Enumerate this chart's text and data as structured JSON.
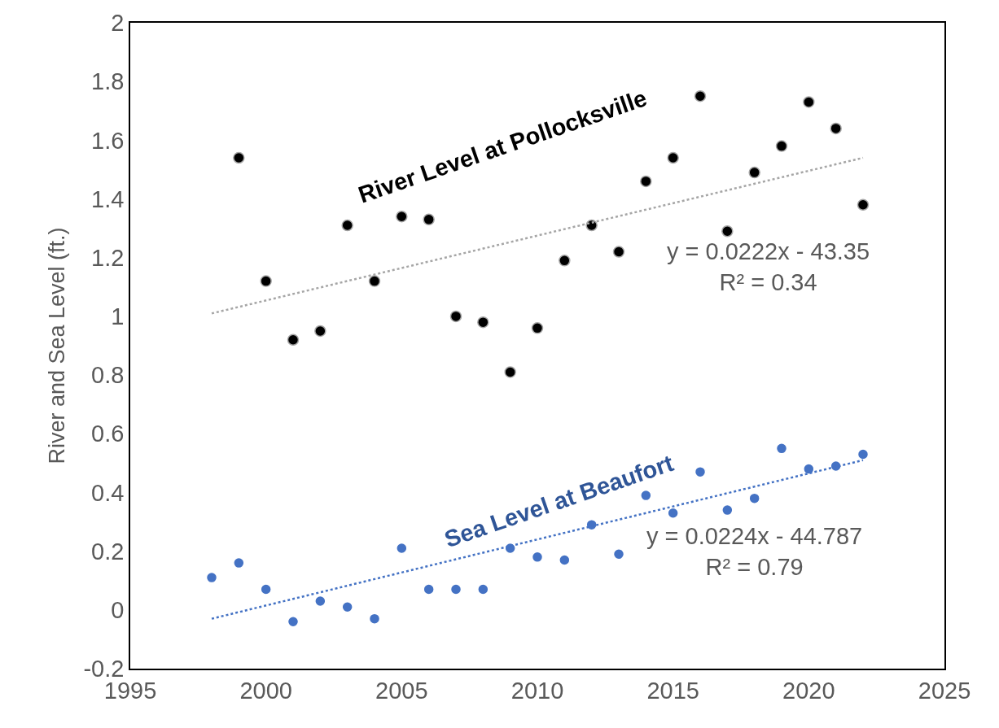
{
  "chart_data": {
    "type": "scatter",
    "ylabel": "River and Sea Level (ft.)",
    "xlim": [
      1995,
      2025
    ],
    "xticks": [
      1995,
      2000,
      2005,
      2010,
      2015,
      2020,
      2025
    ],
    "ylim": [
      -0.2,
      2
    ],
    "yticks": [
      -0.2,
      0,
      0.2,
      0.4,
      0.6,
      0.8,
      1,
      1.2,
      1.4,
      1.6,
      1.8,
      2
    ],
    "marker": "circle",
    "series": [
      {
        "name": "River Level at Pollocksville",
        "color": "#000000",
        "x": [
          1999,
          2000,
          2001,
          2002,
          2003,
          2004,
          2005,
          2006,
          2007,
          2008,
          2009,
          2010,
          2011,
          2012,
          2013,
          2014,
          2015,
          2016,
          2017,
          2018,
          2019,
          2020,
          2021,
          2022
        ],
        "values": [
          1.54,
          1.12,
          0.92,
          0.95,
          1.31,
          1.12,
          1.34,
          1.33,
          1.0,
          0.98,
          0.81,
          0.96,
          1.19,
          1.31,
          1.22,
          1.46,
          1.54,
          1.75,
          1.29,
          1.49,
          1.58,
          1.73,
          1.64,
          1.38
        ]
      },
      {
        "name": "Sea Level at Beaufort",
        "color": "#4472c4",
        "x": [
          1998,
          1999,
          2000,
          2001,
          2002,
          2003,
          2004,
          2005,
          2006,
          2007,
          2008,
          2009,
          2010,
          2011,
          2012,
          2013,
          2014,
          2015,
          2016,
          2017,
          2018,
          2019,
          2020,
          2021,
          2022
        ],
        "values": [
          0.11,
          0.16,
          0.07,
          -0.04,
          0.03,
          0.01,
          -0.03,
          0.21,
          0.07,
          0.07,
          0.07,
          0.21,
          0.18,
          0.17,
          0.29,
          0.19,
          0.39,
          0.33,
          0.47,
          0.34,
          0.38,
          0.55,
          0.48,
          0.49,
          0.53
        ]
      },
      {
        "type": "line",
        "line_style": "dotted",
        "marker": "none",
        "color": "#a6a6a6",
        "x": [
          1998,
          2022
        ],
        "values": [
          1.01,
          1.54
        ]
      },
      {
        "type": "line",
        "line_style": "dotted",
        "marker": "none",
        "color": "#4472c4",
        "x": [
          1998,
          2022
        ],
        "values": [
          -0.03,
          0.51
        ]
      }
    ],
    "annotations": [
      "y = 0.0222x - 43.35\nR² = 0.34",
      "y = 0.0224x - 44.787\nR² = 0.79"
    ]
  }
}
